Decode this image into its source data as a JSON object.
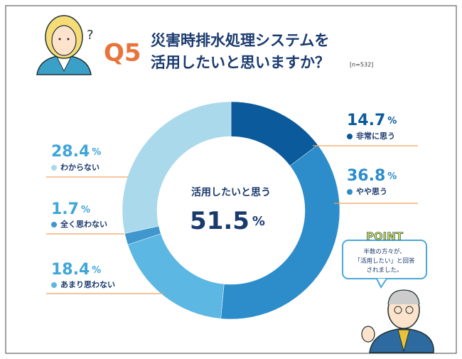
{
  "header": {
    "question_no": "Q5",
    "title_lines": [
      "災害時排水処理システムを",
      "活用したいと思いますか？"
    ],
    "sample": "[n=532]",
    "thinking_mark": "?"
  },
  "chart_data": {
    "type": "donut",
    "categories": [
      "非常に思う",
      "やや思う",
      "あまり思わない",
      "全く思わない",
      "わからない"
    ],
    "values": [
      14.7,
      36.8,
      18.4,
      1.7,
      28.4
    ],
    "colors": [
      "#0b5a9b",
      "#2c8dca",
      "#5cb7e2",
      "#3f97cd",
      "#aad9ec"
    ],
    "unit": "%",
    "center": {
      "label": "活用したいと思う",
      "value": 51.5
    }
  },
  "point": {
    "badge": "POINT",
    "lines": [
      "半数の方々が、",
      "「活用したい」と回答",
      "されました。"
    ]
  }
}
